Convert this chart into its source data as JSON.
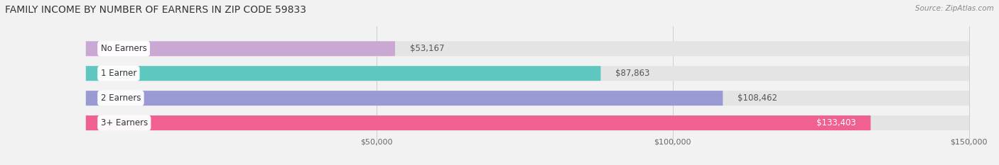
{
  "title": "FAMILY INCOME BY NUMBER OF EARNERS IN ZIP CODE 59833",
  "source": "Source: ZipAtlas.com",
  "categories": [
    "No Earners",
    "1 Earner",
    "2 Earners",
    "3+ Earners"
  ],
  "values": [
    53167,
    87863,
    108462,
    133403
  ],
  "labels": [
    "$53,167",
    "$87,863",
    "$108,462",
    "$133,403"
  ],
  "bar_colors": [
    "#c9a8d4",
    "#5ec8c0",
    "#9999d4",
    "#f06090"
  ],
  "bg_color": "#f2f2f2",
  "bar_bg_color": "#e4e4e4",
  "xlim": [
    0,
    150000
  ],
  "xticks": [
    50000,
    100000,
    150000
  ],
  "xticklabels": [
    "$50,000",
    "$100,000",
    "$150,000"
  ],
  "figsize": [
    14.06,
    2.33
  ],
  "dpi": 100,
  "title_fontsize": 10,
  "label_fontsize": 8.5,
  "tick_fontsize": 8,
  "source_fontsize": 7.5
}
